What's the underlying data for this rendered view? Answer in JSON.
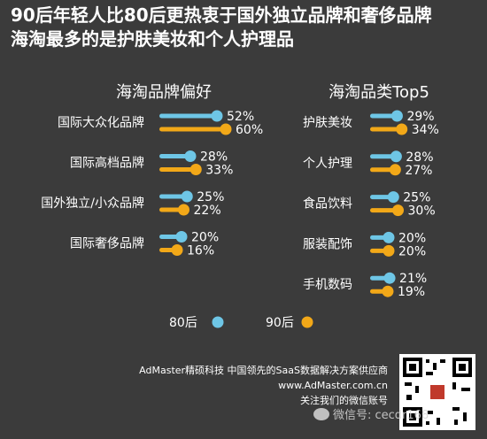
{
  "header": {
    "title_line1": "90后年轻人比80后更热衷于国外独立品牌和奢侈品牌",
    "title_line2": "海淘最多的是护肤美妆和个人护理品"
  },
  "colors": {
    "s80": "#6ec6e6",
    "s90": "#f2a818",
    "background": "#3b3b3b"
  },
  "chart_data": [
    {
      "type": "bar",
      "title": "海淘品牌偏好",
      "categories": [
        "国际大众化品牌",
        "国际高档品牌",
        "国外独立/小众品牌",
        "国际奢侈品牌"
      ],
      "series": [
        {
          "name": "80后",
          "values": [
            52,
            28,
            25,
            20
          ],
          "labels": [
            "52%",
            "28%",
            "25%",
            "20%"
          ]
        },
        {
          "name": "90后",
          "values": [
            60,
            33,
            22,
            16
          ],
          "labels": [
            "60%",
            "33%",
            "22%",
            "16%"
          ]
        }
      ],
      "xlim": [
        0,
        100
      ]
    },
    {
      "type": "bar",
      "title": "海淘品类Top5",
      "categories": [
        "护肤美妆",
        "个人护理",
        "食品饮料",
        "服装配饰",
        "手机数码"
      ],
      "series": [
        {
          "name": "80后",
          "values": [
            29,
            28,
            25,
            20,
            21
          ],
          "labels": [
            "29%",
            "28%",
            "25%",
            "20%",
            "21%"
          ]
        },
        {
          "name": "90后",
          "values": [
            34,
            27,
            30,
            20,
            19
          ],
          "labels": [
            "34%",
            "27%",
            "30%",
            "20%",
            "19%"
          ]
        }
      ],
      "xlim": [
        0,
        100
      ]
    }
  ],
  "legend": {
    "item80": "80后",
    "item90": "90后"
  },
  "footer": {
    "line1": "AdMaster精硕科技 中国领先的SaaS数据解决方案供应商",
    "line2": "www.AdMaster.com.cn",
    "line3": "关注我们的微信账号"
  },
  "watermark": {
    "text": "微信号: cecdr168"
  }
}
